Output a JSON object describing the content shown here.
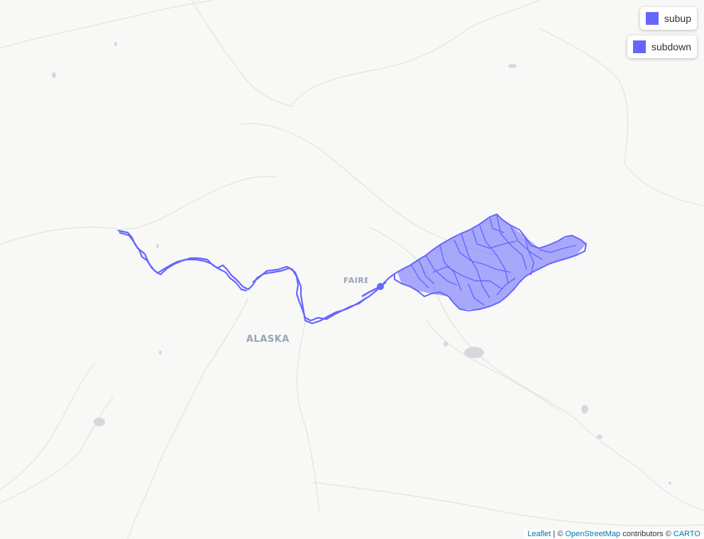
{
  "map": {
    "labels": {
      "state": "ALASKA",
      "city": "FAIRBANKS"
    },
    "layers": [
      {
        "name": "subup",
        "color": "#6666ff"
      },
      {
        "name": "subdown",
        "color": "#6666ff"
      }
    ]
  },
  "legend": {
    "items": [
      {
        "label": "subup",
        "color": "#6666ff"
      },
      {
        "label": "subdown",
        "color": "#6666ff"
      }
    ]
  },
  "attribution": {
    "leaflet": "Leaflet",
    "sep1": " | © ",
    "osm": "OpenStreetMap",
    "contributors": " contributors © ",
    "carto": "CARTO"
  }
}
